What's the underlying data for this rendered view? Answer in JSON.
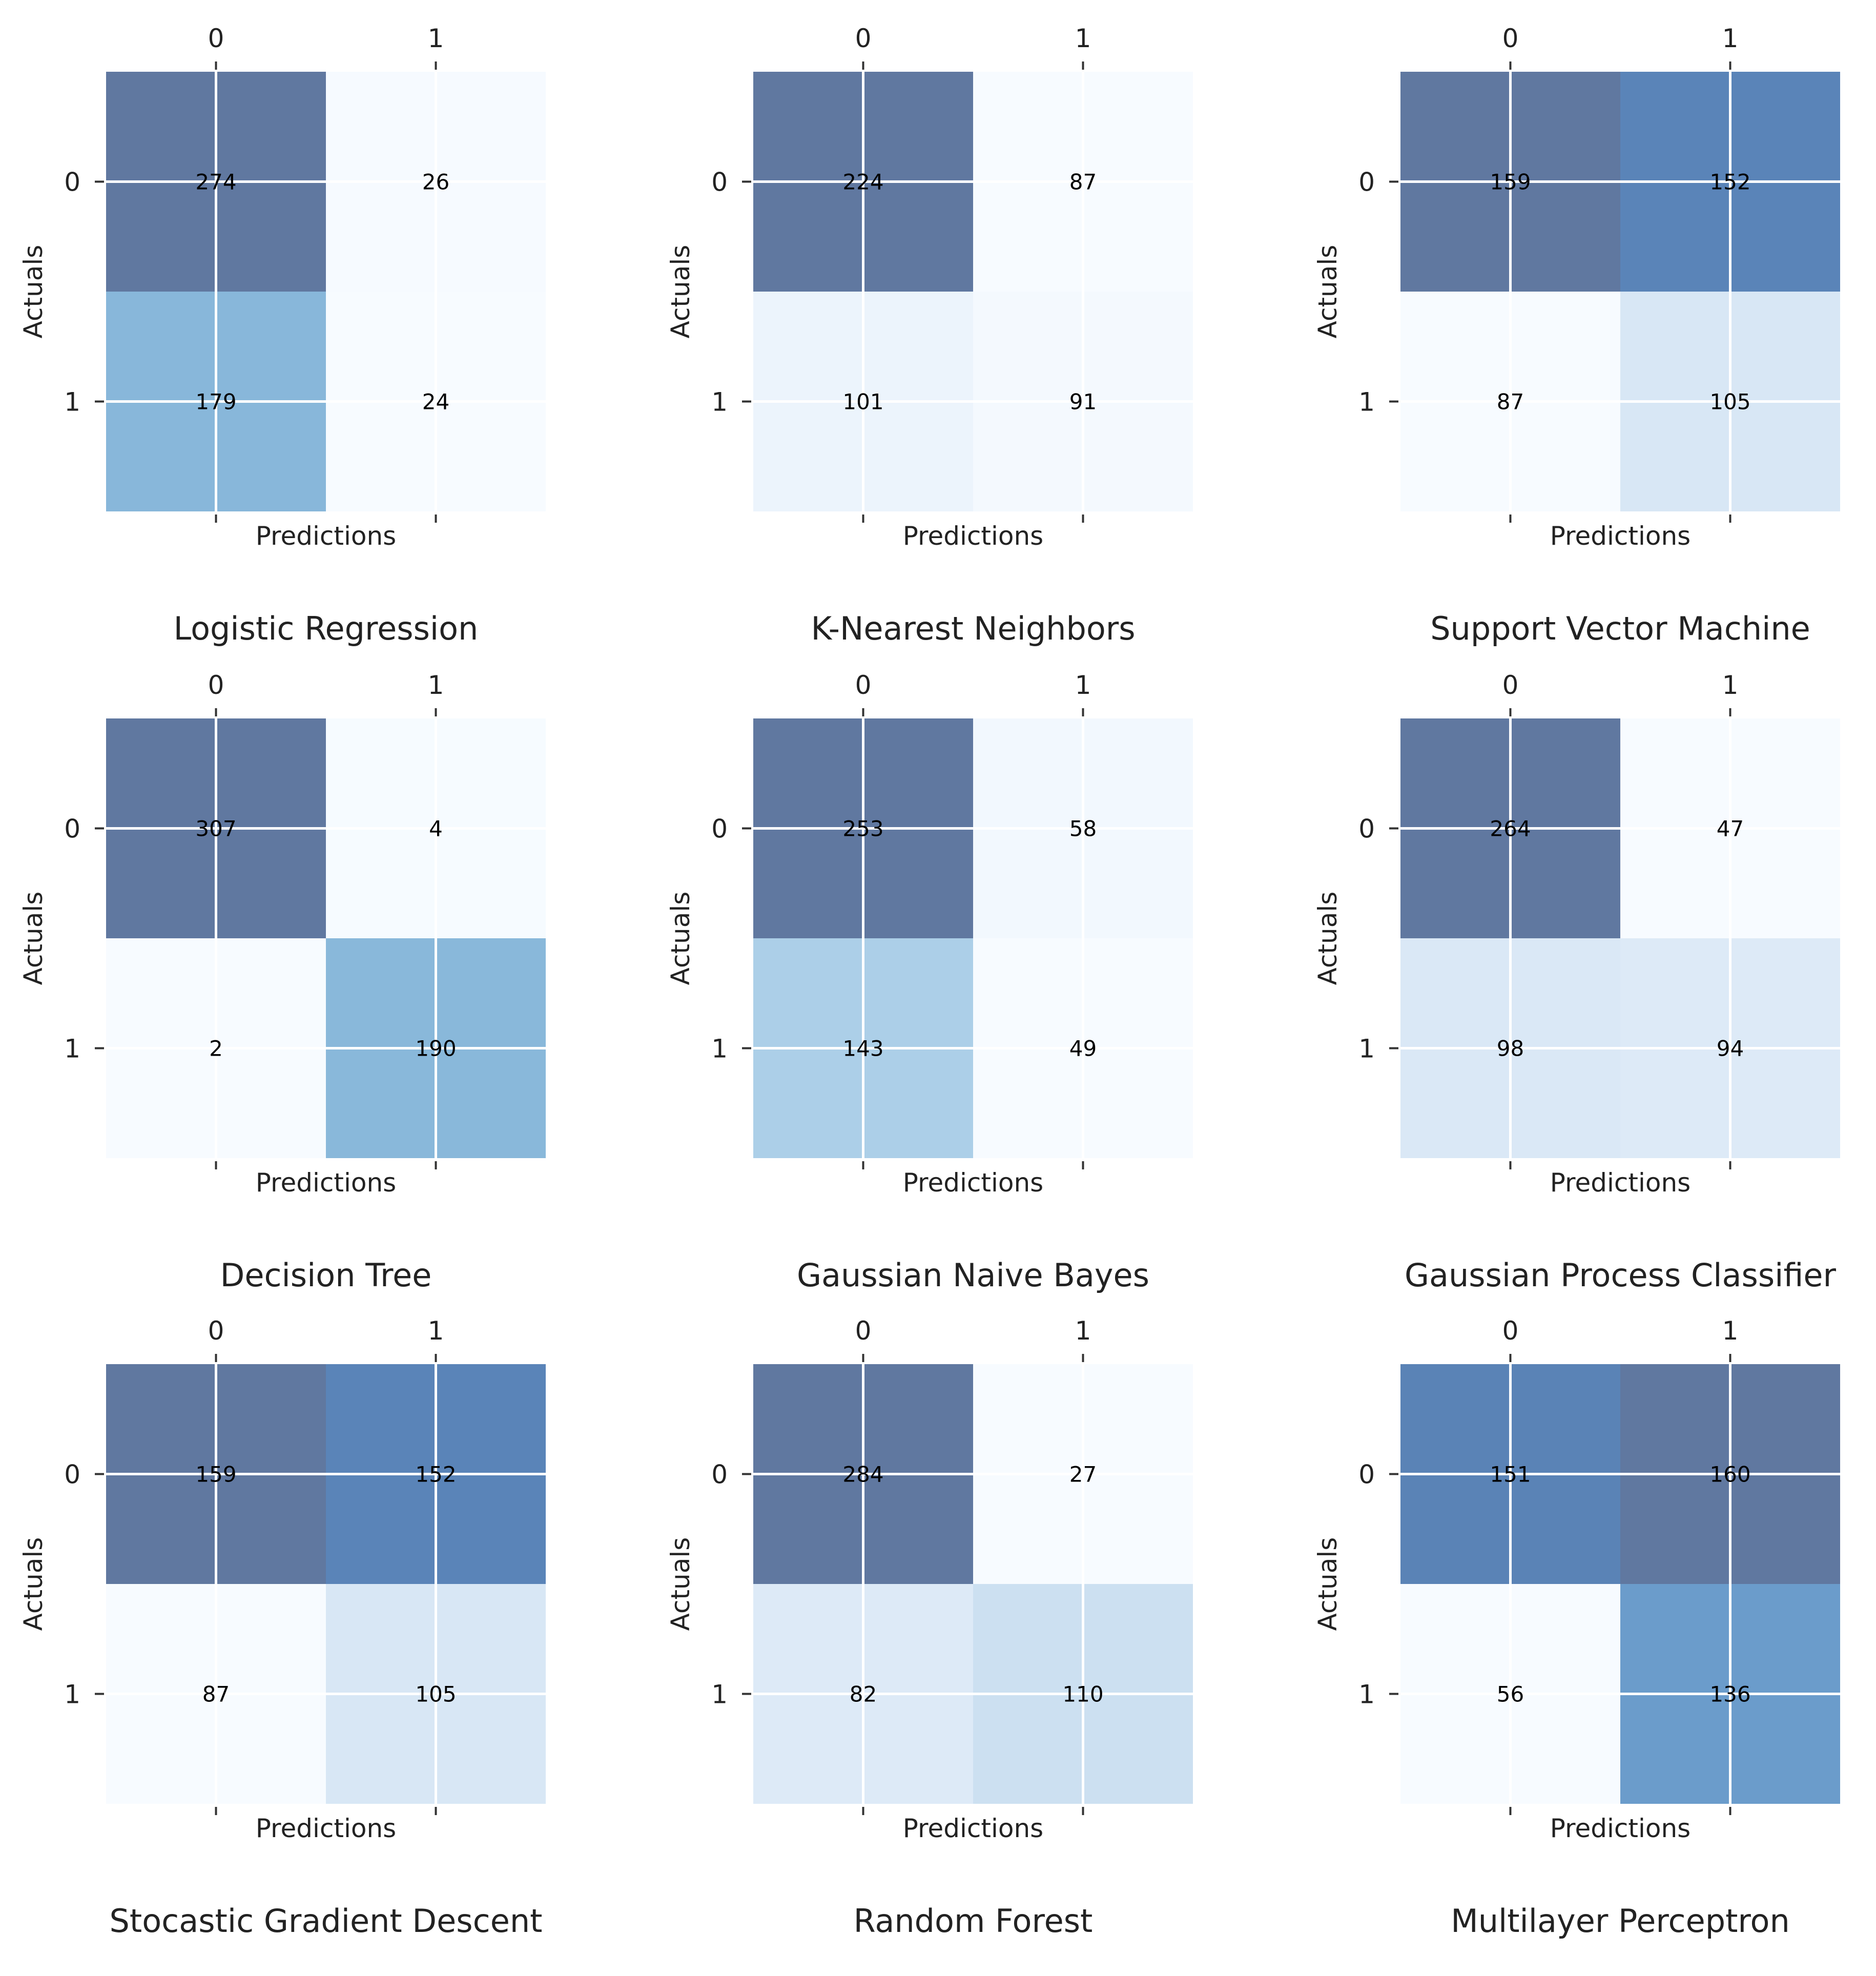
{
  "chart_data": [
    {
      "type": "heatmap",
      "title": "Logistic Regression",
      "xlabel": "Predictions",
      "ylabel": "Actuals",
      "x_ticks": [
        "0",
        "1"
      ],
      "y_ticks": [
        "0",
        "1"
      ],
      "values": [
        [
          274,
          26
        ],
        [
          179,
          24
        ]
      ],
      "colormap": "Blues"
    },
    {
      "type": "heatmap",
      "title": "K-Nearest Neighbors",
      "xlabel": "Predictions",
      "ylabel": "Actuals",
      "x_ticks": [
        "0",
        "1"
      ],
      "y_ticks": [
        "0",
        "1"
      ],
      "values": [
        [
          224,
          87
        ],
        [
          101,
          91
        ]
      ],
      "colormap": "Blues"
    },
    {
      "type": "heatmap",
      "title": "Support Vector Machine",
      "xlabel": "Predictions",
      "ylabel": "Actuals",
      "x_ticks": [
        "0",
        "1"
      ],
      "y_ticks": [
        "0",
        "1"
      ],
      "values": [
        [
          159,
          152
        ],
        [
          87,
          105
        ]
      ],
      "colormap": "Blues"
    },
    {
      "type": "heatmap",
      "title": "Decision Tree",
      "xlabel": "Predictions",
      "ylabel": "Actuals",
      "x_ticks": [
        "0",
        "1"
      ],
      "y_ticks": [
        "0",
        "1"
      ],
      "values": [
        [
          307,
          4
        ],
        [
          2,
          190
        ]
      ],
      "colormap": "Blues"
    },
    {
      "type": "heatmap",
      "title": "Gaussian Naive Bayes",
      "xlabel": "Predictions",
      "ylabel": "Actuals",
      "x_ticks": [
        "0",
        "1"
      ],
      "y_ticks": [
        "0",
        "1"
      ],
      "values": [
        [
          253,
          58
        ],
        [
          143,
          49
        ]
      ],
      "colormap": "Blues"
    },
    {
      "type": "heatmap",
      "title": "Gaussian Process Classifier",
      "xlabel": "Predictions",
      "ylabel": "Actuals",
      "x_ticks": [
        "0",
        "1"
      ],
      "y_ticks": [
        "0",
        "1"
      ],
      "values": [
        [
          264,
          47
        ],
        [
          98,
          94
        ]
      ],
      "colormap": "Blues"
    },
    {
      "type": "heatmap",
      "title": "Stocastic Gradient Descent",
      "xlabel": "Predictions",
      "ylabel": "Actuals",
      "x_ticks": [
        "0",
        "1"
      ],
      "y_ticks": [
        "0",
        "1"
      ],
      "values": [
        [
          159,
          152
        ],
        [
          87,
          105
        ]
      ],
      "colormap": "Blues"
    },
    {
      "type": "heatmap",
      "title": "Random Forest",
      "xlabel": "Predictions",
      "ylabel": "Actuals",
      "x_ticks": [
        "0",
        "1"
      ],
      "y_ticks": [
        "0",
        "1"
      ],
      "values": [
        [
          284,
          27
        ],
        [
          82,
          110
        ]
      ],
      "colormap": "Blues"
    },
    {
      "type": "heatmap",
      "title": "Multilayer Perceptron",
      "xlabel": "Predictions",
      "ylabel": "Actuals",
      "x_ticks": [
        "0",
        "1"
      ],
      "y_ticks": [
        "0",
        "1"
      ],
      "values": [
        [
          151,
          160
        ],
        [
          56,
          136
        ]
      ],
      "colormap": "Blues"
    }
  ]
}
